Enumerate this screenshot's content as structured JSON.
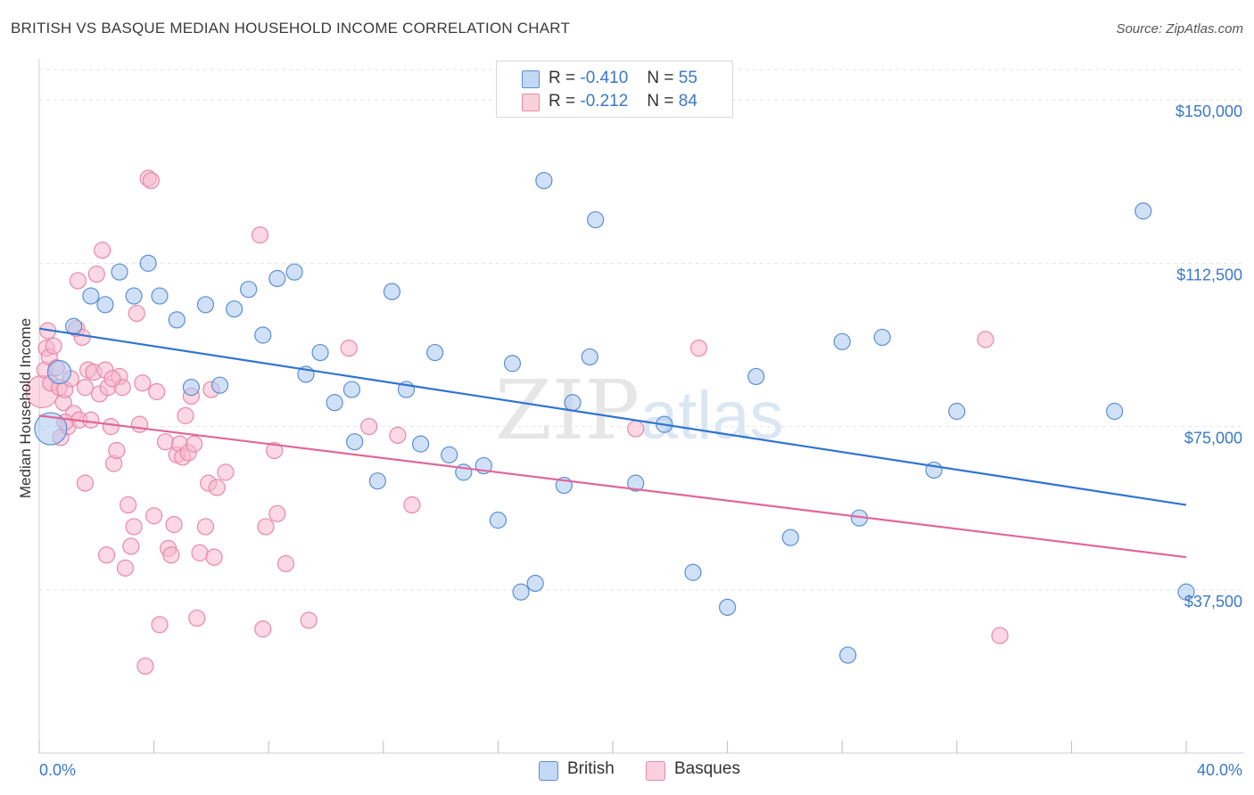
{
  "header": {
    "title": "BRITISH VS BASQUE MEDIAN HOUSEHOLD INCOME CORRELATION CHART",
    "source": "Source: ZipAtlas.com"
  },
  "legend": {
    "british": {
      "r_label": "R =",
      "r_value": "-0.410",
      "n_label": "N =",
      "n_value": "55"
    },
    "basques": {
      "r_label": "R =",
      "r_value": "-0.212",
      "n_label": "N =",
      "n_value": "84"
    }
  },
  "bottom_legend": {
    "british": "British",
    "basques": "Basques"
  },
  "colors": {
    "british_fill": "#a9c8f0",
    "british_stroke": "#5b8fd4",
    "british_line": "#2f74d0",
    "basques_fill": "#f7b8cc",
    "basques_stroke": "#e888a8",
    "basques_line": "#e0679a",
    "tick_label": "#3a78c9",
    "grid": "#e2e2e2"
  },
  "chart_data": {
    "type": "scatter",
    "title": "BRITISH VS BASQUE MEDIAN HOUSEHOLD INCOME CORRELATION CHART",
    "xlabel": "",
    "ylabel": "Median Household Income",
    "xlim": [
      0,
      40
    ],
    "ylim": [
      0,
      157000
    ],
    "x_tick_labels": [
      {
        "value": 0,
        "label": "0.0%"
      },
      {
        "value": 40,
        "label": "40.0%"
      }
    ],
    "y_ticks": [
      {
        "value": 37500,
        "label": "$37,500"
      },
      {
        "value": 75000,
        "label": "$75,000"
      },
      {
        "value": 112500,
        "label": "$112,500"
      },
      {
        "value": 150000,
        "label": "$150,000"
      }
    ],
    "grid": true,
    "legend_position": "top-center",
    "watermark": "ZIPatlas",
    "series": [
      {
        "name": "British",
        "trend": {
          "x": [
            0,
            40
          ],
          "y": [
            97500,
            57000
          ]
        },
        "points": [
          [
            0.4,
            74500,
            "L"
          ],
          [
            0.7,
            87500,
            "M"
          ],
          [
            1.2,
            98000
          ],
          [
            1.8,
            105000
          ],
          [
            2.3,
            103000
          ],
          [
            2.8,
            110500
          ],
          [
            3.3,
            105000
          ],
          [
            3.8,
            112500
          ],
          [
            4.2,
            105000
          ],
          [
            4.8,
            99500
          ],
          [
            5.3,
            84000
          ],
          [
            5.8,
            103000
          ],
          [
            6.3,
            84500
          ],
          [
            6.8,
            102000
          ],
          [
            7.3,
            106500
          ],
          [
            7.8,
            96000
          ],
          [
            8.3,
            109000
          ],
          [
            8.9,
            110500
          ],
          [
            9.3,
            87000
          ],
          [
            9.8,
            92000
          ],
          [
            10.3,
            80500
          ],
          [
            10.9,
            83500
          ],
          [
            11.0,
            71500
          ],
          [
            11.8,
            62500
          ],
          [
            12.3,
            106000
          ],
          [
            12.8,
            83500
          ],
          [
            13.3,
            71000
          ],
          [
            13.8,
            92000
          ],
          [
            14.3,
            68500
          ],
          [
            14.8,
            64500
          ],
          [
            15.5,
            66000
          ],
          [
            16.0,
            53500
          ],
          [
            16.5,
            89500
          ],
          [
            16.8,
            37000
          ],
          [
            17.3,
            39000
          ],
          [
            17.6,
            131500
          ],
          [
            18.3,
            61500
          ],
          [
            18.6,
            80500
          ],
          [
            19.2,
            91000
          ],
          [
            19.4,
            122500
          ],
          [
            20.8,
            62000
          ],
          [
            21.8,
            75500
          ],
          [
            22.8,
            41500
          ],
          [
            24.0,
            33500
          ],
          [
            25.0,
            86500
          ],
          [
            26.2,
            49500
          ],
          [
            28.0,
            94500
          ],
          [
            28.2,
            22500
          ],
          [
            28.6,
            54000
          ],
          [
            29.4,
            95500
          ],
          [
            31.2,
            65000
          ],
          [
            32.0,
            78500
          ],
          [
            37.5,
            78500
          ],
          [
            38.5,
            124500
          ],
          [
            40.0,
            37000
          ]
        ]
      },
      {
        "name": "Basques",
        "trend": {
          "x": [
            0,
            40
          ],
          "y": [
            77500,
            45000
          ]
        },
        "points": [
          [
            0.1,
            83000,
            "L"
          ],
          [
            0.2,
            88000
          ],
          [
            0.25,
            93000
          ],
          [
            0.3,
            97000
          ],
          [
            0.35,
            91000
          ],
          [
            0.4,
            85000
          ],
          [
            0.5,
            93500
          ],
          [
            0.6,
            88500
          ],
          [
            0.7,
            84000
          ],
          [
            0.75,
            72500
          ],
          [
            0.85,
            80500
          ],
          [
            0.9,
            83500
          ],
          [
            1.0,
            75000
          ],
          [
            1.1,
            86000
          ],
          [
            1.2,
            78000
          ],
          [
            1.3,
            97500
          ],
          [
            1.35,
            108500
          ],
          [
            1.4,
            76500
          ],
          [
            1.5,
            95500
          ],
          [
            1.6,
            62000
          ],
          [
            1.7,
            88000
          ],
          [
            1.8,
            76500
          ],
          [
            1.9,
            87500
          ],
          [
            2.0,
            110000
          ],
          [
            2.1,
            82500
          ],
          [
            2.2,
            115500
          ],
          [
            2.3,
            88000
          ],
          [
            2.35,
            45500
          ],
          [
            2.4,
            84000
          ],
          [
            2.5,
            75000
          ],
          [
            2.6,
            66500
          ],
          [
            2.7,
            69500
          ],
          [
            2.8,
            86500
          ],
          [
            2.9,
            84000
          ],
          [
            3.0,
            42500
          ],
          [
            3.1,
            57000
          ],
          [
            3.2,
            47500
          ],
          [
            3.3,
            52000
          ],
          [
            3.4,
            101000
          ],
          [
            3.5,
            75500
          ],
          [
            3.6,
            85000
          ],
          [
            3.7,
            20000
          ],
          [
            3.8,
            132000
          ],
          [
            3.9,
            131500
          ],
          [
            4.0,
            54500
          ],
          [
            4.1,
            83000
          ],
          [
            4.2,
            29500
          ],
          [
            4.4,
            71500
          ],
          [
            4.5,
            47000
          ],
          [
            4.6,
            45500
          ],
          [
            4.7,
            52500
          ],
          [
            4.8,
            68500
          ],
          [
            4.9,
            71000
          ],
          [
            5.0,
            68000
          ],
          [
            5.1,
            77500
          ],
          [
            5.2,
            69000
          ],
          [
            5.3,
            82000
          ],
          [
            5.4,
            71000
          ],
          [
            5.5,
            31000
          ],
          [
            5.6,
            46000
          ],
          [
            5.8,
            52000
          ],
          [
            5.9,
            62000
          ],
          [
            6.0,
            83500
          ],
          [
            6.1,
            45000
          ],
          [
            6.2,
            61000
          ],
          [
            6.5,
            64500
          ],
          [
            7.7,
            119000
          ],
          [
            7.8,
            28500
          ],
          [
            7.9,
            52000
          ],
          [
            8.2,
            69500
          ],
          [
            8.3,
            55000
          ],
          [
            8.6,
            43500
          ],
          [
            9.4,
            30500
          ],
          [
            10.8,
            93000
          ],
          [
            11.5,
            75000
          ],
          [
            12.5,
            73000
          ],
          [
            13.0,
            57000
          ],
          [
            20.8,
            74500
          ],
          [
            23.0,
            93000
          ],
          [
            33.0,
            95000
          ],
          [
            33.5,
            27000
          ],
          [
            0.9,
            76000
          ],
          [
            1.6,
            84000
          ],
          [
            2.55,
            86000
          ]
        ]
      }
    ]
  }
}
